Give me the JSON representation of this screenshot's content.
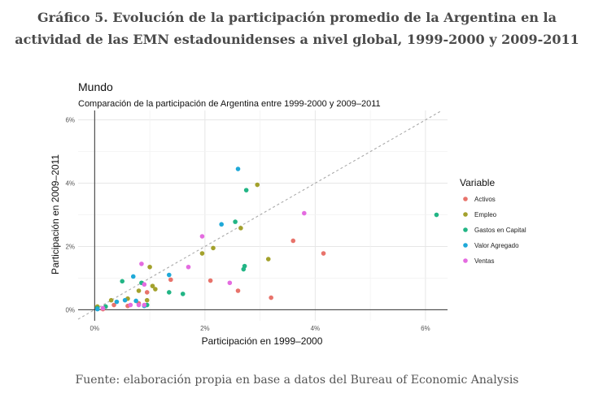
{
  "figure": {
    "title_line1": "Gráfico 5. Evolución de la participación promedio de la Argentina en la",
    "title_line2": "actividad de las EMN estadounidenses a nivel global, 1999-2000 y 2009-2011",
    "source": "Fuente: elaboración propia en base a datos del Bureau of Economic Analysis"
  },
  "chart_data": {
    "type": "scatter",
    "title": "Mundo",
    "subtitle": "Comparación de la participación de Argentina entre 1999-2000 y 2009–2011",
    "xlabel": "Participación en 1999–2000",
    "ylabel": "Participación en 2009–2011",
    "xlim": [
      -0.3,
      6.4
    ],
    "ylim": [
      -0.35,
      6.3
    ],
    "x_ticks": [
      0,
      2,
      4,
      6
    ],
    "x_tick_labels": [
      "0%",
      "2%",
      "4%",
      "6%"
    ],
    "y_ticks": [
      0,
      2,
      4,
      6
    ],
    "y_tick_labels": [
      "0%",
      "2%",
      "4%",
      "6%"
    ],
    "grid": true,
    "reference_line": "y = x",
    "legend_title": "Variable",
    "legend_position": "right",
    "series": [
      {
        "name": "Activos",
        "color": "#E8736B",
        "points": [
          [
            0.05,
            0.05
          ],
          [
            0.15,
            0.02
          ],
          [
            0.35,
            0.15
          ],
          [
            0.6,
            0.12
          ],
          [
            0.8,
            0.2
          ],
          [
            0.95,
            0.55
          ],
          [
            1.38,
            0.95
          ],
          [
            2.1,
            0.92
          ],
          [
            2.6,
            0.6
          ],
          [
            3.2,
            0.38
          ],
          [
            3.6,
            2.18
          ],
          [
            4.15,
            1.78
          ]
        ]
      },
      {
        "name": "Empleo",
        "color": "#A3A12C",
        "points": [
          [
            0.05,
            0.1
          ],
          [
            0.3,
            0.3
          ],
          [
            0.6,
            0.35
          ],
          [
            0.8,
            0.6
          ],
          [
            0.95,
            0.3
          ],
          [
            1.0,
            1.35
          ],
          [
            1.05,
            0.75
          ],
          [
            1.1,
            0.65
          ],
          [
            1.95,
            1.78
          ],
          [
            2.15,
            1.95
          ],
          [
            2.65,
            2.58
          ],
          [
            2.95,
            3.95
          ],
          [
            3.15,
            1.6
          ]
        ]
      },
      {
        "name": "Gastos en Capital",
        "color": "#22B585",
        "points": [
          [
            0.05,
            0.05
          ],
          [
            0.2,
            0.1
          ],
          [
            0.5,
            0.9
          ],
          [
            0.85,
            0.85
          ],
          [
            0.95,
            0.15
          ],
          [
            1.35,
            0.55
          ],
          [
            1.6,
            0.5
          ],
          [
            2.55,
            2.78
          ],
          [
            2.7,
            1.28
          ],
          [
            2.72,
            1.38
          ],
          [
            2.75,
            3.78
          ],
          [
            6.2,
            3.0
          ]
        ]
      },
      {
        "name": "Valor Agregado",
        "color": "#1FA9D8",
        "points": [
          [
            0.05,
            0.02
          ],
          [
            0.4,
            0.25
          ],
          [
            0.55,
            0.3
          ],
          [
            0.7,
            1.05
          ],
          [
            0.75,
            0.28
          ],
          [
            0.9,
            0.12
          ],
          [
            1.35,
            1.1
          ],
          [
            2.3,
            2.7
          ],
          [
            2.6,
            4.45
          ]
        ]
      },
      {
        "name": "Ventas",
        "color": "#E46BE0",
        "points": [
          [
            0.15,
            0.05
          ],
          [
            0.65,
            0.15
          ],
          [
            0.8,
            0.15
          ],
          [
            0.85,
            1.45
          ],
          [
            0.9,
            0.8
          ],
          [
            0.9,
            0.15
          ],
          [
            1.7,
            1.35
          ],
          [
            1.95,
            2.32
          ],
          [
            2.45,
            0.85
          ],
          [
            3.8,
            3.05
          ]
        ]
      }
    ]
  }
}
